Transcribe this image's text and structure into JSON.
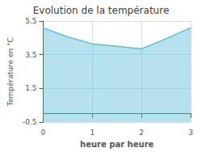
{
  "chart_data": {
    "type": "area",
    "title": "Evolution de la température",
    "x_label": "heure par heure",
    "y_label": "Température en °C",
    "x": [
      0,
      0.5,
      1.0,
      1.5,
      2.0,
      2.5,
      3.0
    ],
    "values": [
      5.1,
      4.55,
      4.15,
      4.0,
      3.85,
      4.45,
      5.1
    ],
    "color": "#5bbfd6",
    "xlim": [
      0,
      3
    ],
    "xticks": [
      0,
      1,
      2,
      3
    ],
    "ylim": [
      -0.5,
      5.5
    ],
    "yticks": [
      -0.5,
      1.5,
      3.5,
      5.5
    ],
    "grid": true
  }
}
